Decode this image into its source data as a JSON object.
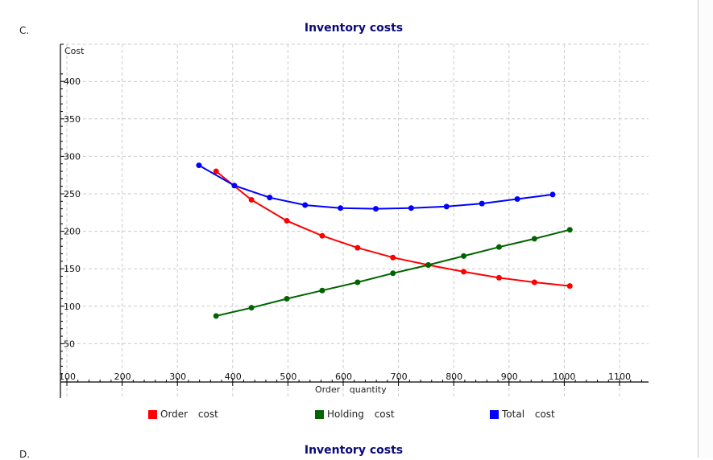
{
  "section_label": "C.",
  "next_section_label": "D.",
  "next_chart_title": "Inventory costs",
  "chart_data": {
    "type": "line",
    "title": "Inventory costs",
    "xlabel": "Order quantity",
    "ylabel": "Cost",
    "xlim": [
      100,
      1150
    ],
    "ylim": [
      0,
      420
    ],
    "x_ticks": [
      100,
      200,
      300,
      400,
      500,
      600,
      700,
      800,
      900,
      1000,
      1100
    ],
    "y_ticks": [
      50,
      100,
      150,
      200,
      250,
      300,
      350,
      400
    ],
    "grid": true,
    "legend_position": "bottom",
    "series": [
      {
        "name": "Order cost",
        "color": "#ff0000",
        "x": [
          370,
          434,
          498,
          562,
          626,
          690,
          754,
          818,
          882,
          946,
          1010
        ],
        "values": [
          280,
          242,
          214,
          194,
          178,
          165,
          155,
          146,
          138,
          132,
          127
        ]
      },
      {
        "name": "Holding cost",
        "color": "#006400",
        "x": [
          370,
          434,
          498,
          562,
          626,
          690,
          754,
          818,
          882,
          946,
          1010
        ],
        "values": [
          87,
          98,
          110,
          121,
          132,
          144,
          155,
          167,
          179,
          190,
          202
        ]
      },
      {
        "name": "Total cost",
        "color": "#0000ff",
        "x": [
          339,
          403,
          467,
          531,
          595,
          659,
          723,
          787,
          851,
          915,
          979
        ],
        "values": [
          288,
          261,
          245,
          235,
          231,
          230,
          231,
          233,
          237,
          243,
          249
        ]
      }
    ]
  },
  "legend": [
    {
      "label": "Order cost",
      "color": "#ff0000"
    },
    {
      "label": "Holding cost",
      "color": "#006400"
    },
    {
      "label": "Total cost",
      "color": "#0000ff"
    }
  ]
}
